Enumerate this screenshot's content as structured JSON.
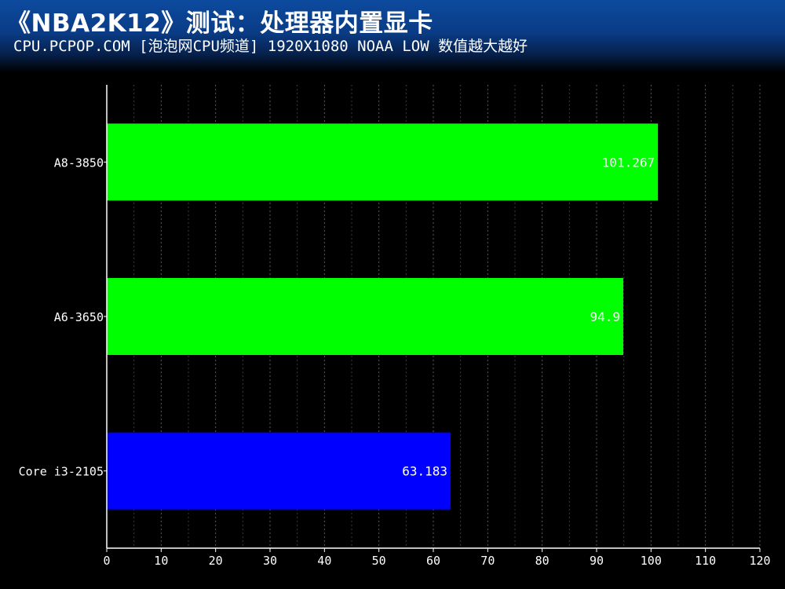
{
  "header": {
    "title": "《NBA2K12》测试：处理器内置显卡",
    "subtitle": "CPU.PCPOP.COM [泡泡网CPU频道] 1920X1080 NOAA LOW 数值越大越好"
  },
  "chart_data": {
    "type": "bar",
    "orientation": "horizontal",
    "title": "《NBA2K12》测试：处理器内置显卡",
    "subtitle": "CPU.PCPOP.COM [泡泡网CPU频道] 1920X1080 NOAA LOW 数值越大越好",
    "categories": [
      "A8-3850",
      "A6-3650",
      "Core i3-2105"
    ],
    "values": [
      101.267,
      94.9,
      63.183
    ],
    "value_labels": [
      "101.267",
      "94.9",
      "63.183"
    ],
    "bar_colors": [
      "#00ff00",
      "#00ff00",
      "#0000ff"
    ],
    "xlim": [
      0,
      120
    ],
    "xticks": [
      0,
      10,
      20,
      30,
      40,
      50,
      60,
      70,
      80,
      90,
      100,
      110,
      120
    ],
    "grid": true,
    "legend": "none",
    "xlabel": "",
    "ylabel": ""
  }
}
